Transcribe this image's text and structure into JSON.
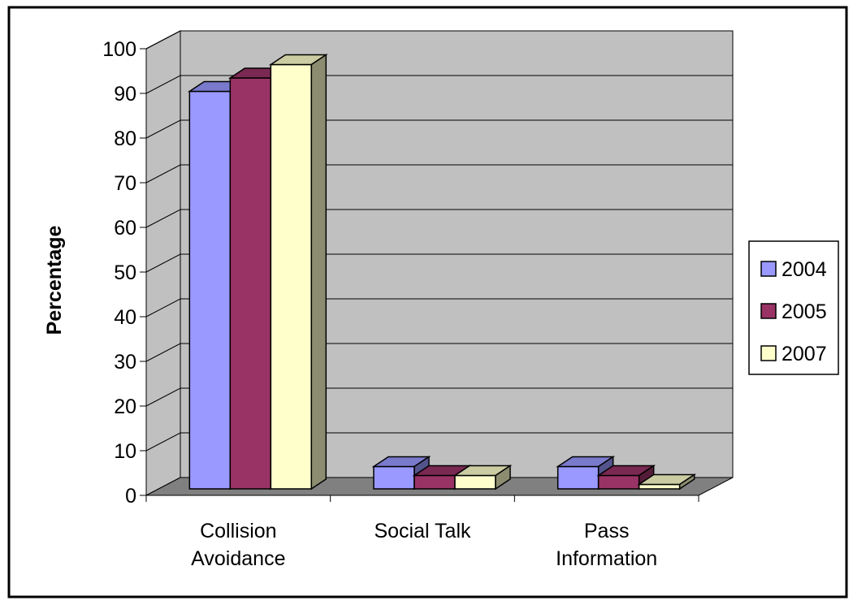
{
  "chart_data": {
    "type": "bar",
    "ylabel": "Percentage",
    "xlabel": "",
    "ylim": [
      0,
      100
    ],
    "yticks": [
      "0",
      "10",
      "20",
      "30",
      "40",
      "50",
      "60",
      "70",
      "80",
      "90",
      "100"
    ],
    "categories": [
      "Collision Avoidance",
      "Social Talk",
      "Pass Information"
    ],
    "category_lines": [
      [
        "Collision",
        "Avoidance"
      ],
      [
        "Social Talk"
      ],
      [
        "Pass",
        "Information"
      ]
    ],
    "series": [
      {
        "name": "2004",
        "values": [
          89,
          5,
          5
        ],
        "color": "#9999ff"
      },
      {
        "name": "2005",
        "values": [
          92,
          3,
          3
        ],
        "color": "#993366"
      },
      {
        "name": "2007",
        "values": [
          95,
          3,
          1
        ],
        "color": "#ffffcc"
      }
    ],
    "legend_position": "right",
    "grid": true,
    "three_d": true,
    "colors": {
      "wall": "#c0c0c0",
      "floor": "#808080",
      "grid": "#000000",
      "frame": "#000000"
    }
  }
}
